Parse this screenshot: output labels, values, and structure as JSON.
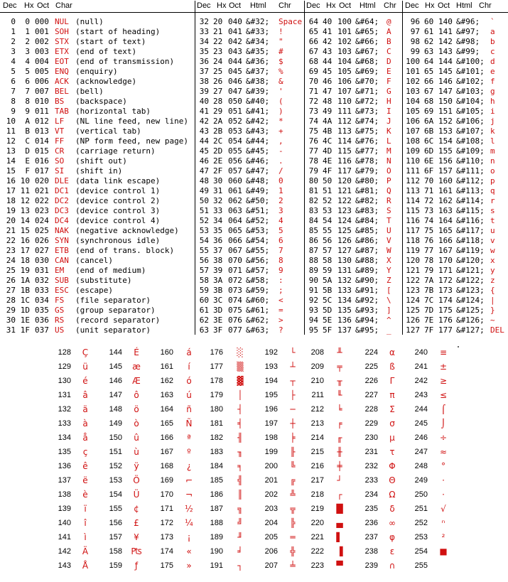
{
  "headers": [
    {
      "dec": "Dec",
      "hx": "Hx",
      "oct": "Oct",
      "char": "Char"
    },
    {
      "dec": "Dec",
      "hx": "Hx",
      "oct": "Oct",
      "html": "Html",
      "chr": "Chr"
    },
    {
      "dec": "Dec",
      "hx": "Hx",
      "oct": "Oct",
      "html": "Html",
      "chr": "Chr"
    },
    {
      "dec": "Dec",
      "hx": "Hx",
      "oct": "Oct",
      "html": "Html",
      "chr": "Chr"
    }
  ],
  "control": [
    [
      "0",
      "0",
      "000",
      "NUL",
      "(null)"
    ],
    [
      "1",
      "1",
      "001",
      "SOH",
      "(start of heading)"
    ],
    [
      "2",
      "2",
      "002",
      "STX",
      "(start of text)"
    ],
    [
      "3",
      "3",
      "003",
      "ETX",
      "(end of text)"
    ],
    [
      "4",
      "4",
      "004",
      "EOT",
      "(end of transmission)"
    ],
    [
      "5",
      "5",
      "005",
      "ENQ",
      "(enquiry)"
    ],
    [
      "6",
      "6",
      "006",
      "ACK",
      "(acknowledge)"
    ],
    [
      "7",
      "7",
      "007",
      "BEL",
      "(bell)"
    ],
    [
      "8",
      "8",
      "010",
      "BS",
      "(backspace)"
    ],
    [
      "9",
      "9",
      "011",
      "TAB",
      "(horizontal tab)"
    ],
    [
      "10",
      "A",
      "012",
      "LF",
      "(NL line feed, new line)"
    ],
    [
      "11",
      "B",
      "013",
      "VT",
      "(vertical tab)"
    ],
    [
      "12",
      "C",
      "014",
      "FF",
      "(NP form feed, new page)"
    ],
    [
      "13",
      "D",
      "015",
      "CR",
      "(carriage return)"
    ],
    [
      "14",
      "E",
      "016",
      "SO",
      "(shift out)"
    ],
    [
      "15",
      "F",
      "017",
      "SI",
      "(shift in)"
    ],
    [
      "16",
      "10",
      "020",
      "DLE",
      "(data link escape)"
    ],
    [
      "17",
      "11",
      "021",
      "DC1",
      "(device control 1)"
    ],
    [
      "18",
      "12",
      "022",
      "DC2",
      "(device control 2)"
    ],
    [
      "19",
      "13",
      "023",
      "DC3",
      "(device control 3)"
    ],
    [
      "20",
      "14",
      "024",
      "DC4",
      "(device control 4)"
    ],
    [
      "21",
      "15",
      "025",
      "NAK",
      "(negative acknowledge)"
    ],
    [
      "22",
      "16",
      "026",
      "SYN",
      "(synchronous idle)"
    ],
    [
      "23",
      "17",
      "027",
      "ETB",
      "(end of trans. block)"
    ],
    [
      "24",
      "18",
      "030",
      "CAN",
      "(cancel)"
    ],
    [
      "25",
      "19",
      "031",
      "EM",
      "(end of medium)"
    ],
    [
      "26",
      "1A",
      "032",
      "SUB",
      "(substitute)"
    ],
    [
      "27",
      "1B",
      "033",
      "ESC",
      "(escape)"
    ],
    [
      "28",
      "1C",
      "034",
      "FS",
      "(file separator)"
    ],
    [
      "29",
      "1D",
      "035",
      "GS",
      "(group separator)"
    ],
    [
      "30",
      "1E",
      "036",
      "RS",
      "(record separator)"
    ],
    [
      "31",
      "1F",
      "037",
      "US",
      "(unit separator)"
    ]
  ],
  "block2": [
    [
      "32",
      "20",
      "040",
      "&#32;",
      "Space"
    ],
    [
      "33",
      "21",
      "041",
      "&#33;",
      "!"
    ],
    [
      "34",
      "22",
      "042",
      "&#34;",
      "\""
    ],
    [
      "35",
      "23",
      "043",
      "&#35;",
      "#"
    ],
    [
      "36",
      "24",
      "044",
      "&#36;",
      "$"
    ],
    [
      "37",
      "25",
      "045",
      "&#37;",
      "%"
    ],
    [
      "38",
      "26",
      "046",
      "&#38;",
      "&"
    ],
    [
      "39",
      "27",
      "047",
      "&#39;",
      "'"
    ],
    [
      "40",
      "28",
      "050",
      "&#40;",
      "("
    ],
    [
      "41",
      "29",
      "051",
      "&#41;",
      ")"
    ],
    [
      "42",
      "2A",
      "052",
      "&#42;",
      "*"
    ],
    [
      "43",
      "2B",
      "053",
      "&#43;",
      "+"
    ],
    [
      "44",
      "2C",
      "054",
      "&#44;",
      ","
    ],
    [
      "45",
      "2D",
      "055",
      "&#45;",
      "-"
    ],
    [
      "46",
      "2E",
      "056",
      "&#46;",
      "."
    ],
    [
      "47",
      "2F",
      "057",
      "&#47;",
      "/"
    ],
    [
      "48",
      "30",
      "060",
      "&#48;",
      "0"
    ],
    [
      "49",
      "31",
      "061",
      "&#49;",
      "1"
    ],
    [
      "50",
      "32",
      "062",
      "&#50;",
      "2"
    ],
    [
      "51",
      "33",
      "063",
      "&#51;",
      "3"
    ],
    [
      "52",
      "34",
      "064",
      "&#52;",
      "4"
    ],
    [
      "53",
      "35",
      "065",
      "&#53;",
      "5"
    ],
    [
      "54",
      "36",
      "066",
      "&#54;",
      "6"
    ],
    [
      "55",
      "37",
      "067",
      "&#55;",
      "7"
    ],
    [
      "56",
      "38",
      "070",
      "&#56;",
      "8"
    ],
    [
      "57",
      "39",
      "071",
      "&#57;",
      "9"
    ],
    [
      "58",
      "3A",
      "072",
      "&#58;",
      ":"
    ],
    [
      "59",
      "3B",
      "073",
      "&#59;",
      ";"
    ],
    [
      "60",
      "3C",
      "074",
      "&#60;",
      "<"
    ],
    [
      "61",
      "3D",
      "075",
      "&#61;",
      "="
    ],
    [
      "62",
      "3E",
      "076",
      "&#62;",
      ">"
    ],
    [
      "63",
      "3F",
      "077",
      "&#63;",
      "?"
    ]
  ],
  "block3": [
    [
      "64",
      "40",
      "100",
      "&#64;",
      "@"
    ],
    [
      "65",
      "41",
      "101",
      "&#65;",
      "A"
    ],
    [
      "66",
      "42",
      "102",
      "&#66;",
      "B"
    ],
    [
      "67",
      "43",
      "103",
      "&#67;",
      "C"
    ],
    [
      "68",
      "44",
      "104",
      "&#68;",
      "D"
    ],
    [
      "69",
      "45",
      "105",
      "&#69;",
      "E"
    ],
    [
      "70",
      "46",
      "106",
      "&#70;",
      "F"
    ],
    [
      "71",
      "47",
      "107",
      "&#71;",
      "G"
    ],
    [
      "72",
      "48",
      "110",
      "&#72;",
      "H"
    ],
    [
      "73",
      "49",
      "111",
      "&#73;",
      "I"
    ],
    [
      "74",
      "4A",
      "112",
      "&#74;",
      "J"
    ],
    [
      "75",
      "4B",
      "113",
      "&#75;",
      "K"
    ],
    [
      "76",
      "4C",
      "114",
      "&#76;",
      "L"
    ],
    [
      "77",
      "4D",
      "115",
      "&#77;",
      "M"
    ],
    [
      "78",
      "4E",
      "116",
      "&#78;",
      "N"
    ],
    [
      "79",
      "4F",
      "117",
      "&#79;",
      "O"
    ],
    [
      "80",
      "50",
      "120",
      "&#80;",
      "P"
    ],
    [
      "81",
      "51",
      "121",
      "&#81;",
      "Q"
    ],
    [
      "82",
      "52",
      "122",
      "&#82;",
      "R"
    ],
    [
      "83",
      "53",
      "123",
      "&#83;",
      "S"
    ],
    [
      "84",
      "54",
      "124",
      "&#84;",
      "T"
    ],
    [
      "85",
      "55",
      "125",
      "&#85;",
      "U"
    ],
    [
      "86",
      "56",
      "126",
      "&#86;",
      "V"
    ],
    [
      "87",
      "57",
      "127",
      "&#87;",
      "W"
    ],
    [
      "88",
      "58",
      "130",
      "&#88;",
      "X"
    ],
    [
      "89",
      "59",
      "131",
      "&#89;",
      "Y"
    ],
    [
      "90",
      "5A",
      "132",
      "&#90;",
      "Z"
    ],
    [
      "91",
      "5B",
      "133",
      "&#91;",
      "["
    ],
    [
      "92",
      "5C",
      "134",
      "&#92;",
      "\\"
    ],
    [
      "93",
      "5D",
      "135",
      "&#93;",
      "]"
    ],
    [
      "94",
      "5E",
      "136",
      "&#94;",
      "^"
    ],
    [
      "95",
      "5F",
      "137",
      "&#95;",
      "_"
    ]
  ],
  "block4": [
    [
      "96",
      "60",
      "140",
      "&#96;",
      "`"
    ],
    [
      "97",
      "61",
      "141",
      "&#97;",
      "a"
    ],
    [
      "98",
      "62",
      "142",
      "&#98;",
      "b"
    ],
    [
      "99",
      "63",
      "143",
      "&#99;",
      "c"
    ],
    [
      "100",
      "64",
      "144",
      "&#100;",
      "d"
    ],
    [
      "101",
      "65",
      "145",
      "&#101;",
      "e"
    ],
    [
      "102",
      "66",
      "146",
      "&#102;",
      "f"
    ],
    [
      "103",
      "67",
      "147",
      "&#103;",
      "g"
    ],
    [
      "104",
      "68",
      "150",
      "&#104;",
      "h"
    ],
    [
      "105",
      "69",
      "151",
      "&#105;",
      "i"
    ],
    [
      "106",
      "6A",
      "152",
      "&#106;",
      "j"
    ],
    [
      "107",
      "6B",
      "153",
      "&#107;",
      "k"
    ],
    [
      "108",
      "6C",
      "154",
      "&#108;",
      "l"
    ],
    [
      "109",
      "6D",
      "155",
      "&#109;",
      "m"
    ],
    [
      "110",
      "6E",
      "156",
      "&#110;",
      "n"
    ],
    [
      "111",
      "6F",
      "157",
      "&#111;",
      "o"
    ],
    [
      "112",
      "70",
      "160",
      "&#112;",
      "p"
    ],
    [
      "113",
      "71",
      "161",
      "&#113;",
      "q"
    ],
    [
      "114",
      "72",
      "162",
      "&#114;",
      "r"
    ],
    [
      "115",
      "73",
      "163",
      "&#115;",
      "s"
    ],
    [
      "116",
      "74",
      "164",
      "&#116;",
      "t"
    ],
    [
      "117",
      "75",
      "165",
      "&#117;",
      "u"
    ],
    [
      "118",
      "76",
      "166",
      "&#118;",
      "v"
    ],
    [
      "119",
      "77",
      "167",
      "&#119;",
      "w"
    ],
    [
      "120",
      "78",
      "170",
      "&#120;",
      "x"
    ],
    [
      "121",
      "79",
      "171",
      "&#121;",
      "y"
    ],
    [
      "122",
      "7A",
      "172",
      "&#122;",
      "z"
    ],
    [
      "123",
      "7B",
      "173",
      "&#123;",
      "{"
    ],
    [
      "124",
      "7C",
      "174",
      "&#124;",
      "|"
    ],
    [
      "125",
      "7D",
      "175",
      "&#125;",
      "}"
    ],
    [
      "126",
      "7E",
      "176",
      "&#126;",
      "~"
    ],
    [
      "127",
      "7F",
      "177",
      "&#127;",
      "DEL"
    ]
  ],
  "extended": [
    [
      "128",
      "Ç"
    ],
    [
      "129",
      "ü"
    ],
    [
      "130",
      "é"
    ],
    [
      "131",
      "â"
    ],
    [
      "132",
      "ä"
    ],
    [
      "133",
      "à"
    ],
    [
      "134",
      "å"
    ],
    [
      "135",
      "ç"
    ],
    [
      "136",
      "ê"
    ],
    [
      "137",
      "ë"
    ],
    [
      "138",
      "è"
    ],
    [
      "139",
      "ï"
    ],
    [
      "140",
      "î"
    ],
    [
      "141",
      "ì"
    ],
    [
      "142",
      "Ä"
    ],
    [
      "143",
      "Å"
    ],
    [
      "144",
      "É"
    ],
    [
      "145",
      "æ"
    ],
    [
      "146",
      "Æ"
    ],
    [
      "147",
      "ô"
    ],
    [
      "148",
      "ö"
    ],
    [
      "149",
      "ò"
    ],
    [
      "150",
      "û"
    ],
    [
      "151",
      "ù"
    ],
    [
      "152",
      "ÿ"
    ],
    [
      "153",
      "Ö"
    ],
    [
      "154",
      "Ü"
    ],
    [
      "155",
      "¢"
    ],
    [
      "156",
      "£"
    ],
    [
      "157",
      "¥"
    ],
    [
      "158",
      "₧"
    ],
    [
      "159",
      "ƒ"
    ],
    [
      "160",
      "á"
    ],
    [
      "161",
      "í"
    ],
    [
      "162",
      "ó"
    ],
    [
      "163",
      "ú"
    ],
    [
      "164",
      "ñ"
    ],
    [
      "165",
      "Ñ"
    ],
    [
      "166",
      "ª"
    ],
    [
      "167",
      "º"
    ],
    [
      "168",
      "¿"
    ],
    [
      "169",
      "⌐"
    ],
    [
      "170",
      "¬"
    ],
    [
      "171",
      "½"
    ],
    [
      "172",
      "¼"
    ],
    [
      "173",
      "¡"
    ],
    [
      "174",
      "«"
    ],
    [
      "175",
      "»"
    ],
    [
      "176",
      "░"
    ],
    [
      "177",
      "▒"
    ],
    [
      "178",
      "▓"
    ],
    [
      "179",
      "│"
    ],
    [
      "180",
      "┤"
    ],
    [
      "181",
      "╡"
    ],
    [
      "182",
      "╢"
    ],
    [
      "183",
      "╖"
    ],
    [
      "184",
      "╕"
    ],
    [
      "185",
      "╣"
    ],
    [
      "186",
      "║"
    ],
    [
      "187",
      "╗"
    ],
    [
      "188",
      "╝"
    ],
    [
      "189",
      "╜"
    ],
    [
      "190",
      "╛"
    ],
    [
      "191",
      "┐"
    ],
    [
      "192",
      "└"
    ],
    [
      "193",
      "┴"
    ],
    [
      "194",
      "┬"
    ],
    [
      "195",
      "├"
    ],
    [
      "196",
      "─"
    ],
    [
      "197",
      "┼"
    ],
    [
      "198",
      "╞"
    ],
    [
      "199",
      "╟"
    ],
    [
      "200",
      "╚"
    ],
    [
      "201",
      "╔"
    ],
    [
      "202",
      "╩"
    ],
    [
      "203",
      "╦"
    ],
    [
      "204",
      "╠"
    ],
    [
      "205",
      "═"
    ],
    [
      "206",
      "╬"
    ],
    [
      "207",
      "╧"
    ],
    [
      "208",
      "╨"
    ],
    [
      "209",
      "╤"
    ],
    [
      "210",
      "╥"
    ],
    [
      "211",
      "╙"
    ],
    [
      "212",
      "╘"
    ],
    [
      "213",
      "╒"
    ],
    [
      "214",
      "╓"
    ],
    [
      "215",
      "╫"
    ],
    [
      "216",
      "╪"
    ],
    [
      "217",
      "┘"
    ],
    [
      "218",
      "┌"
    ],
    [
      "219",
      "█"
    ],
    [
      "220",
      "▄"
    ],
    [
      "221",
      "▌"
    ],
    [
      "222",
      "▐"
    ],
    [
      "223",
      "▀"
    ],
    [
      "224",
      "α"
    ],
    [
      "225",
      "ß"
    ],
    [
      "226",
      "Γ"
    ],
    [
      "227",
      "π"
    ],
    [
      "228",
      "Σ"
    ],
    [
      "229",
      "σ"
    ],
    [
      "230",
      "µ"
    ],
    [
      "231",
      "τ"
    ],
    [
      "232",
      "Φ"
    ],
    [
      "233",
      "Θ"
    ],
    [
      "234",
      "Ω"
    ],
    [
      "235",
      "δ"
    ],
    [
      "236",
      "∞"
    ],
    [
      "237",
      "φ"
    ],
    [
      "238",
      "ε"
    ],
    [
      "239",
      "∩"
    ],
    [
      "240",
      "≡"
    ],
    [
      "241",
      "±"
    ],
    [
      "242",
      "≥"
    ],
    [
      "243",
      "≤"
    ],
    [
      "244",
      "⌠"
    ],
    [
      "245",
      "⌡"
    ],
    [
      "246",
      "÷"
    ],
    [
      "247",
      "≈"
    ],
    [
      "248",
      "°"
    ],
    [
      "249",
      "·"
    ],
    [
      "250",
      "·"
    ],
    [
      "251",
      "√"
    ],
    [
      "252",
      "ⁿ"
    ],
    [
      "253",
      "²"
    ],
    [
      "254",
      "■"
    ],
    [
      "255",
      ""
    ]
  ]
}
